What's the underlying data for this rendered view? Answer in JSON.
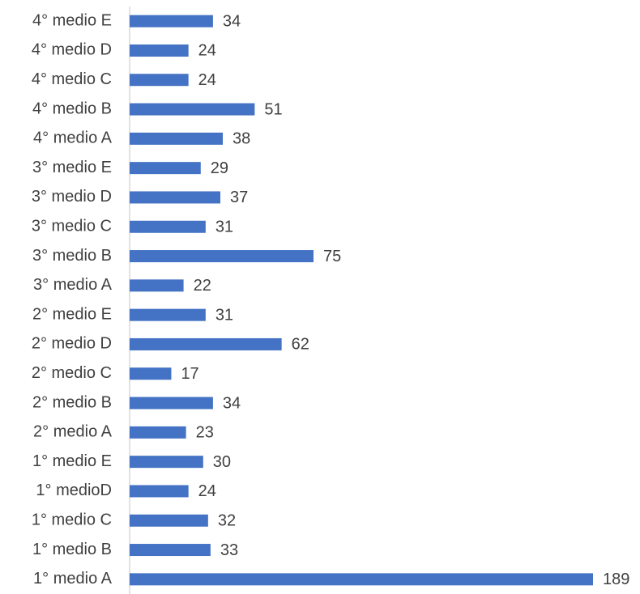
{
  "chart_data": {
    "type": "bar",
    "orientation": "horizontal",
    "categories": [
      "4° medio E",
      "4° medio D",
      "4° medio C",
      "4° medio B",
      "4° medio A",
      "3° medio E",
      "3° medio D",
      "3° medio C",
      "3° medio B",
      "3° medio A",
      "2° medio E",
      "2° medio D",
      "2° medio C",
      "2° medio B",
      "2° medio A",
      "1° medio E",
      "1° medioD",
      "1° medio C",
      "1° medio B",
      "1° medio A"
    ],
    "values": [
      34,
      24,
      24,
      51,
      38,
      29,
      37,
      31,
      75,
      22,
      31,
      62,
      17,
      34,
      23,
      30,
      24,
      32,
      33,
      189
    ],
    "color": "#4472c4",
    "data_labels": true
  }
}
